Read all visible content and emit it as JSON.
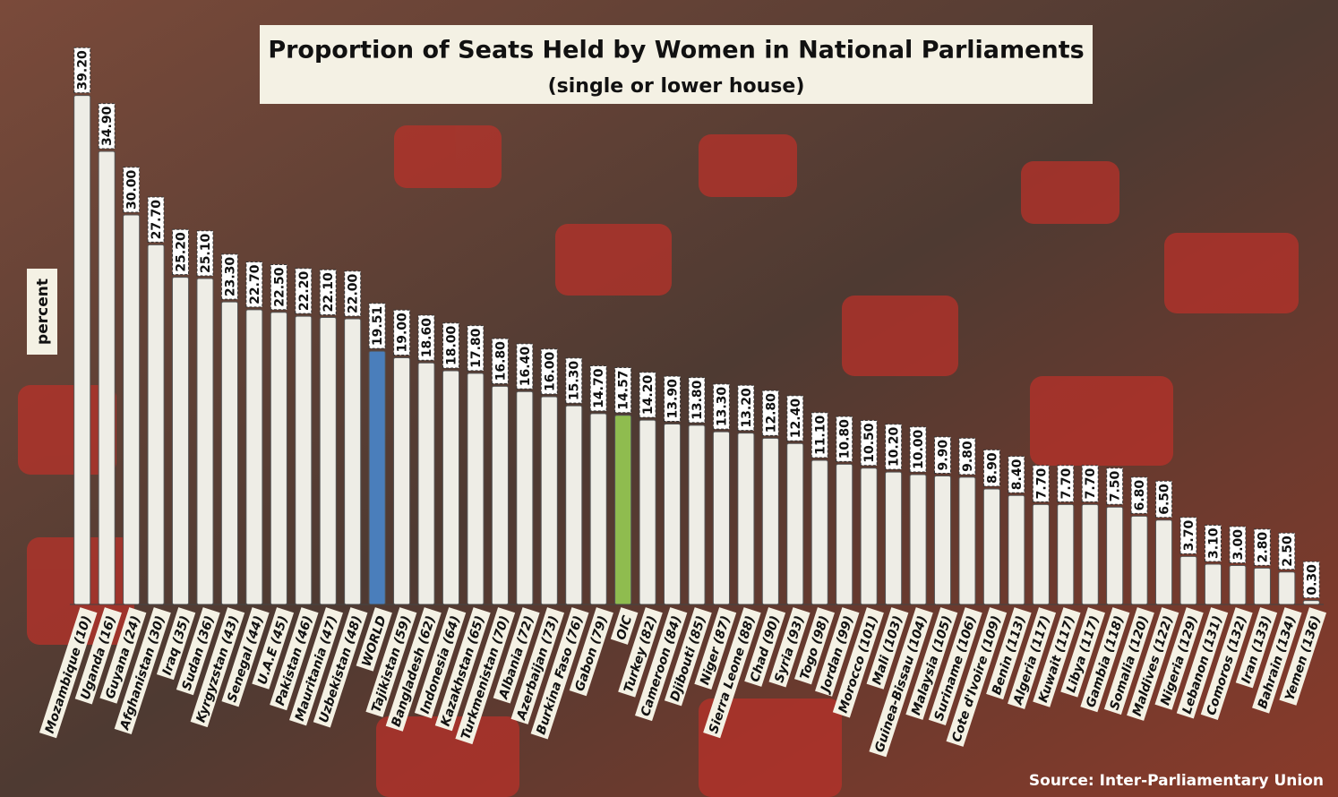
{
  "chart_data": {
    "type": "bar",
    "title": "Proportion of Seats Held by Women in National Parliaments",
    "subtitle": "(single or lower house)",
    "y_label": "percent",
    "source": "Source: Inter-Parliamentary Union",
    "categories": [
      "Mozambique (10)",
      "Uganda (16)",
      "Guyana (24)",
      "Afghanistan (30)",
      "Iraq (35)",
      "Sudan (36)",
      "Kyrgyzstan (43)",
      "Senegal (44)",
      "U.A.E (45)",
      "Pakistan (46)",
      "Mauritania (47)",
      "Uzbekistan (48)",
      "WORLD",
      "Tajikistan (59)",
      "Bangladesh (62)",
      "Indonesia (64)",
      "Kazakhstan (65)",
      "Turkmenistan (70)",
      "Albania (72)",
      "Azerbaijan (73)",
      "Burkina Faso (76)",
      "Gabon (79)",
      "OIC",
      "Turkey (82)",
      "Cameroon (84)",
      "Djibouti (85)",
      "Niger (87)",
      "Sierra Leone (88)",
      "Chad (90)",
      "Syria (93)",
      "Togo (98)",
      "Jordan (99)",
      "Morocco (101)",
      "Mali (103)",
      "Guinea-Bissau (104)",
      "Malaysia (105)",
      "Suriname (106)",
      "Cote d'Ivoire (109)",
      "Benin (113)",
      "Algeria (117)",
      "Kuwait (117)",
      "Libya (117)",
      "Gambia (118)",
      "Somalia (120)",
      "Maldives (122)",
      "Nigeria (129)",
      "Lebanon (131)",
      "Comoros (132)",
      "Iran (133)",
      "Bahrain (134)",
      "Yemen (136)"
    ],
    "values": [
      39.2,
      34.9,
      30.0,
      27.7,
      25.2,
      25.1,
      23.3,
      22.7,
      22.5,
      22.2,
      22.1,
      22.0,
      19.51,
      19.0,
      18.6,
      18.0,
      17.8,
      16.8,
      16.4,
      16.0,
      15.3,
      14.7,
      14.57,
      14.2,
      13.9,
      13.8,
      13.3,
      13.2,
      12.8,
      12.4,
      11.1,
      10.8,
      10.5,
      10.2,
      10.0,
      9.9,
      9.8,
      8.9,
      8.4,
      7.7,
      7.7,
      7.7,
      7.5,
      6.8,
      6.5,
      3.7,
      3.1,
      3.0,
      2.8,
      2.5,
      0.3
    ],
    "value_labels": [
      "39.20",
      "34.90",
      "30.00",
      "27.70",
      "25.20",
      "25.10",
      "23.30",
      "22.70",
      "22.50",
      "22.20",
      "22.10",
      "22.00",
      "19.51",
      "19.00",
      "18.60",
      "18.00",
      "17.80",
      "16.80",
      "16.40",
      "16.00",
      "15.30",
      "14.70",
      "14.57",
      "14.20",
      "13.90",
      "13.80",
      "13.30",
      "13.20",
      "12.80",
      "12.40",
      "11.10",
      "10.80",
      "10.50",
      "10.20",
      "10.00",
      "9.90",
      "9.80",
      "8.90",
      "8.40",
      "7.70",
      "7.70",
      "7.70",
      "7.50",
      "6.80",
      "6.50",
      "3.70",
      "3.10",
      "3.00",
      "2.80",
      "2.50",
      "0.30"
    ],
    "colors": [
      "#eeede6",
      "#eeede6",
      "#eeede6",
      "#eeede6",
      "#eeede6",
      "#eeede6",
      "#eeede6",
      "#eeede6",
      "#eeede6",
      "#eeede6",
      "#eeede6",
      "#eeede6",
      "#4a7ebb",
      "#eeede6",
      "#eeede6",
      "#eeede6",
      "#eeede6",
      "#eeede6",
      "#eeede6",
      "#eeede6",
      "#eeede6",
      "#eeede6",
      "#8fbc4f",
      "#eeede6",
      "#eeede6",
      "#eeede6",
      "#eeede6",
      "#eeede6",
      "#eeede6",
      "#eeede6",
      "#eeede6",
      "#eeede6",
      "#eeede6",
      "#eeede6",
      "#eeede6",
      "#eeede6",
      "#eeede6",
      "#eeede6",
      "#eeede6",
      "#eeede6",
      "#eeede6",
      "#eeede6",
      "#eeede6",
      "#eeede6",
      "#eeede6",
      "#eeede6",
      "#eeede6",
      "#eeede6",
      "#eeede6",
      "#eeede6",
      "#eeede6"
    ],
    "ylim": [
      0,
      40
    ]
  }
}
